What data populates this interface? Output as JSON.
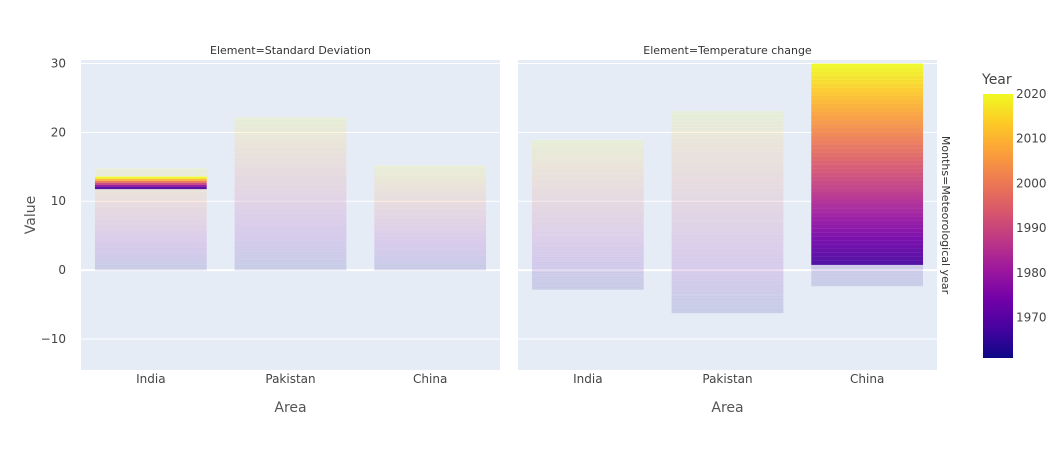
{
  "chart_data": {
    "type": "bar",
    "barmode": "overlay",
    "categories": [
      "India",
      "Pakistan",
      "China"
    ],
    "xlabel": "Area",
    "ylabel": "Value",
    "ylim": [
      -14.5,
      30.5
    ],
    "yticks": [
      -10,
      0,
      10,
      20,
      30
    ],
    "row_facet_label": "Months=Meteorological year",
    "colorbar": {
      "title": "Year",
      "range": [
        1961,
        2020
      ],
      "ticks": [
        1970,
        1980,
        1990,
        2000,
        2010,
        2020
      ],
      "colorscale": [
        "#0d0887",
        "#46039f",
        "#7201a8",
        "#9c179e",
        "#bd3786",
        "#d8576b",
        "#ed7953",
        "#fb9f3a",
        "#fdca26",
        "#f0f921"
      ]
    },
    "facets": [
      {
        "title": "Element=Standard Deviation",
        "bars": [
          {
            "category": "India",
            "min": 0,
            "max": 14.8,
            "highlight": [
              11.8,
              13.6
            ]
          },
          {
            "category": "Pakistan",
            "min": 0,
            "max": 22.2,
            "highlight": null
          },
          {
            "category": "China",
            "min": 0,
            "max": 15.2,
            "highlight": null
          }
        ]
      },
      {
        "title": "Element=Temperature change",
        "bars": [
          {
            "category": "India",
            "min": -2.8,
            "max": 18.9,
            "highlight": null
          },
          {
            "category": "Pakistan",
            "min": -6.2,
            "max": 23.1,
            "highlight": null
          },
          {
            "category": "China",
            "min": -2.3,
            "max": 30.0,
            "highlight": [
              0.8,
              30.0
            ]
          }
        ]
      }
    ]
  }
}
